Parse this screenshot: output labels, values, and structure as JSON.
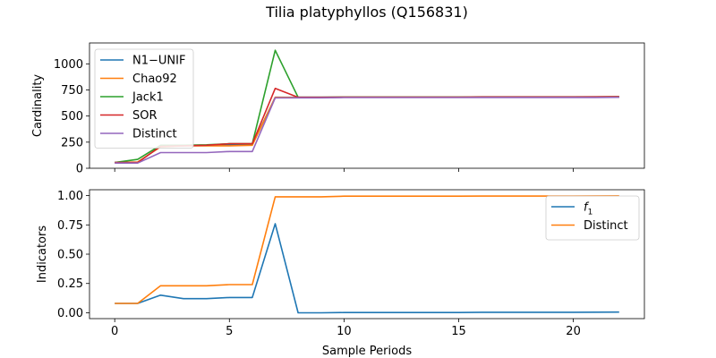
{
  "chart_data": {
    "title": "Tilia platyphyllos (Q156831)",
    "x": [
      0,
      1,
      2,
      3,
      4,
      5,
      6,
      7,
      8,
      9,
      10,
      11,
      12,
      13,
      14,
      15,
      16,
      17,
      18,
      19,
      20,
      21,
      22
    ],
    "xlabel": "Sample Periods",
    "xlim": [
      -1.1,
      23.1
    ],
    "xticks": [
      0,
      5,
      10,
      15,
      20
    ],
    "panels": [
      {
        "type": "line",
        "ylabel": "Cardinality",
        "ylim": [
          0,
          1200
        ],
        "yticks": [
          0,
          250,
          500,
          750,
          1000
        ],
        "legend": "top-left",
        "show_xtick_labels": false,
        "series": [
          {
            "name": "N1−UNIF",
            "color": "#1f77b4",
            "values": [
              55,
              55,
              210,
              215,
              220,
              225,
              225,
              680,
              680,
              680,
              680,
              680,
              680,
              680,
              680,
              680,
              680,
              680,
              680,
              680,
              680,
              680,
              680
            ]
          },
          {
            "name": "Chao92",
            "color": "#ff7f0e",
            "values": [
              55,
              60,
              205,
              215,
              215,
              215,
              220,
              680,
              678,
              678,
              680,
              680,
              680,
              680,
              680,
              680,
              682,
              682,
              682,
              682,
              682,
              683,
              685
            ]
          },
          {
            "name": "Jack1",
            "color": "#2ca02c",
            "values": [
              55,
              85,
              220,
              220,
              225,
              235,
              235,
              1130,
              680,
              680,
              682,
              682,
              682,
              682,
              682,
              682,
              684,
              684,
              684,
              684,
              684,
              684,
              686
            ]
          },
          {
            "name": "SOR",
            "color": "#d62728",
            "values": [
              55,
              55,
              210,
              215,
              220,
              235,
              235,
              765,
              680,
              680,
              681,
              681,
              681,
              681,
              681,
              681,
              683,
              683,
              683,
              683,
              683,
              684,
              686
            ]
          },
          {
            "name": "Distinct",
            "color": "#9467bd",
            "values": [
              50,
              50,
              150,
              150,
              150,
              160,
              160,
              675,
              675,
              675,
              677,
              677,
              677,
              677,
              677,
              677,
              678,
              678,
              678,
              678,
              678,
              678,
              680
            ]
          }
        ]
      },
      {
        "type": "line",
        "ylabel": "Indicators",
        "ylim": [
          -0.05,
          1.05
        ],
        "yticks": [
          0.0,
          0.25,
          0.5,
          0.75,
          1.0
        ],
        "ytick_labels": [
          "0.00",
          "0.25",
          "0.50",
          "0.75",
          "1.00"
        ],
        "legend": "top-right",
        "show_xtick_labels": true,
        "series": [
          {
            "name": "f1",
            "name_main": "f",
            "name_sub": "1",
            "color": "#1f77b4",
            "values": [
              0.08,
              0.08,
              0.15,
              0.12,
              0.12,
              0.13,
              0.13,
              0.76,
              0.0,
              0.0,
              0.002,
              0.002,
              0.002,
              0.002,
              0.002,
              0.002,
              0.004,
              0.004,
              0.004,
              0.004,
              0.004,
              0.005,
              0.006
            ]
          },
          {
            "name": "Distinct",
            "color": "#ff7f0e",
            "values": [
              0.08,
              0.08,
              0.23,
              0.23,
              0.23,
              0.24,
              0.24,
              0.99,
              0.99,
              0.99,
              0.995,
              0.995,
              0.995,
              0.995,
              0.995,
              0.995,
              0.996,
              0.996,
              0.996,
              0.996,
              0.996,
              0.997,
              0.998
            ]
          }
        ]
      }
    ]
  }
}
